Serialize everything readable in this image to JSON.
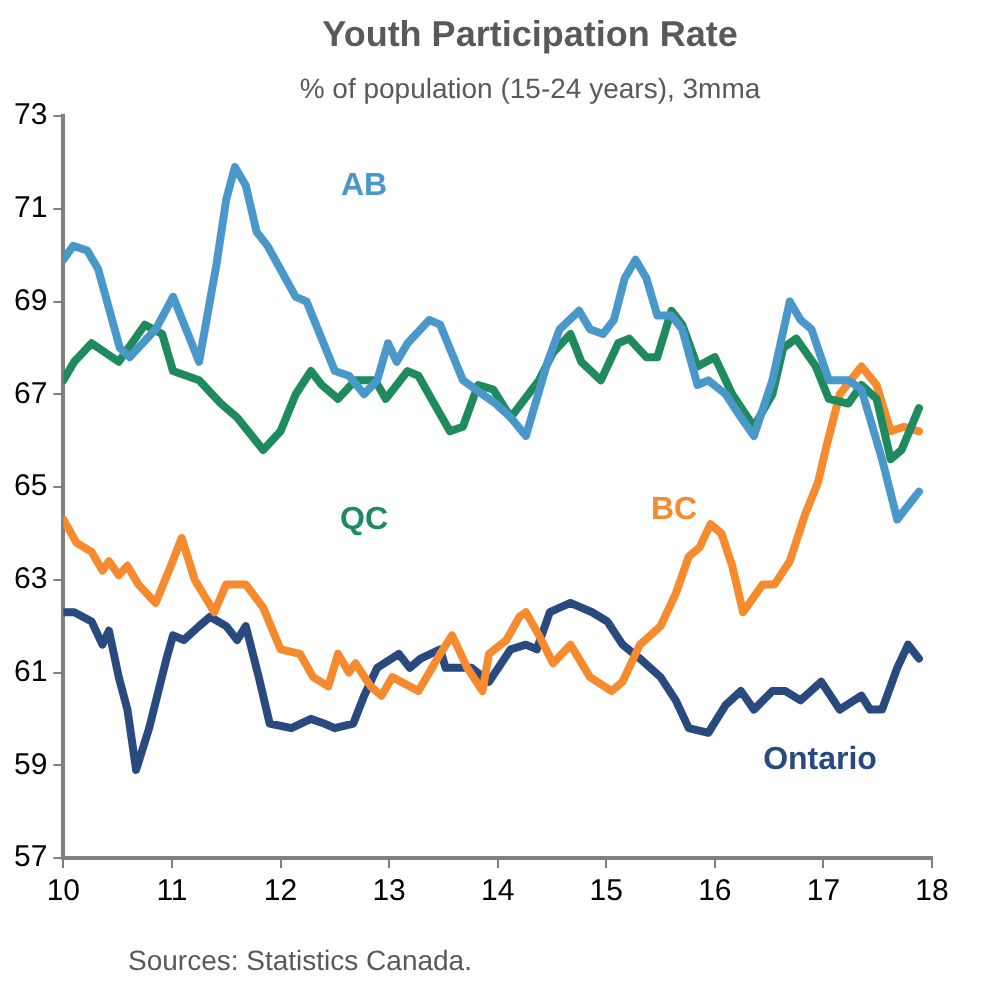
{
  "chart_data": {
    "type": "line",
    "title": "Youth Participation Rate",
    "subtitle": "% of population (15-24 years), 3mma",
    "annotations": [
      "Sources: Statistics Canada."
    ],
    "xlim": [
      10,
      18
    ],
    "xticks": [
      10,
      11,
      12,
      13,
      14,
      15,
      16,
      17,
      18
    ],
    "ylim": [
      57,
      73
    ],
    "yticks": [
      57,
      59,
      61,
      63,
      65,
      67,
      69,
      71,
      73
    ],
    "grid": false,
    "legend": false,
    "marker": "none",
    "line_style": "solid",
    "series": [
      {
        "name": "AB",
        "color": "#4a98c9",
        "x": [
          10.0,
          10.09,
          10.22,
          10.32,
          10.52,
          10.61,
          10.85,
          11.01,
          11.25,
          11.41,
          11.5,
          11.58,
          11.68,
          11.78,
          11.88,
          12.14,
          12.24,
          12.5,
          12.63,
          12.77,
          12.89,
          12.99,
          13.07,
          13.17,
          13.37,
          13.47,
          13.68,
          13.86,
          13.98,
          14.12,
          14.26,
          14.46,
          14.57,
          14.75,
          14.85,
          14.97,
          15.07,
          15.17,
          15.27,
          15.37,
          15.47,
          15.6,
          15.7,
          15.84,
          15.94,
          16.1,
          16.24,
          16.36,
          16.53,
          16.69,
          16.79,
          16.89,
          17.05,
          17.23,
          17.35,
          17.54,
          17.68,
          17.88
        ],
        "values": [
          69.9,
          70.2,
          70.1,
          69.7,
          68.0,
          67.8,
          68.4,
          69.1,
          67.7,
          69.8,
          71.2,
          71.9,
          71.5,
          70.5,
          70.2,
          69.1,
          69.0,
          67.5,
          67.4,
          67.0,
          67.3,
          68.1,
          67.7,
          68.1,
          68.6,
          68.5,
          67.3,
          67.0,
          66.8,
          66.5,
          66.1,
          67.7,
          68.4,
          68.8,
          68.4,
          68.3,
          68.6,
          69.5,
          69.9,
          69.5,
          68.7,
          68.7,
          68.4,
          67.2,
          67.3,
          67.0,
          66.5,
          66.1,
          67.3,
          69.0,
          68.6,
          68.4,
          67.3,
          67.3,
          67.1,
          65.6,
          64.3,
          64.9
        ]
      },
      {
        "name": "QC",
        "color": "#1e8a5e",
        "x": [
          10.0,
          10.1,
          10.26,
          10.51,
          10.75,
          10.91,
          11.01,
          11.25,
          11.45,
          11.6,
          11.84,
          12.0,
          12.14,
          12.28,
          12.38,
          12.53,
          12.69,
          12.87,
          12.97,
          13.17,
          13.27,
          13.39,
          13.56,
          13.68,
          13.82,
          13.96,
          14.12,
          14.38,
          14.51,
          14.67,
          14.77,
          14.95,
          15.11,
          15.21,
          15.37,
          15.47,
          15.6,
          15.7,
          15.84,
          16.0,
          16.16,
          16.36,
          16.53,
          16.63,
          16.75,
          16.93,
          17.05,
          17.23,
          17.35,
          17.49,
          17.62,
          17.72,
          17.88
        ],
        "values": [
          67.3,
          67.7,
          68.1,
          67.7,
          68.5,
          68.3,
          67.5,
          67.3,
          66.8,
          66.5,
          65.8,
          66.2,
          67.0,
          67.5,
          67.2,
          66.9,
          67.3,
          67.3,
          66.9,
          67.5,
          67.4,
          66.9,
          66.2,
          66.3,
          67.2,
          67.1,
          66.5,
          67.3,
          67.9,
          68.3,
          67.7,
          67.3,
          68.1,
          68.2,
          67.8,
          67.8,
          68.8,
          68.5,
          67.6,
          67.8,
          67.0,
          66.3,
          67.0,
          68.0,
          68.2,
          67.6,
          66.9,
          66.8,
          67.2,
          66.9,
          65.6,
          65.8,
          66.7
        ]
      },
      {
        "name": "BC",
        "color": "#f58a2e",
        "x": [
          10.0,
          10.12,
          10.26,
          10.36,
          10.42,
          10.51,
          10.59,
          10.69,
          10.85,
          10.99,
          11.09,
          11.21,
          11.39,
          11.5,
          11.68,
          11.84,
          12.0,
          12.18,
          12.3,
          12.44,
          12.53,
          12.63,
          12.69,
          12.83,
          12.93,
          13.03,
          13.27,
          13.47,
          13.58,
          13.72,
          13.86,
          13.92,
          14.08,
          14.2,
          14.26,
          14.38,
          14.51,
          14.67,
          14.85,
          15.05,
          15.15,
          15.31,
          15.5,
          15.64,
          15.76,
          15.86,
          15.96,
          16.06,
          16.16,
          16.26,
          16.44,
          16.55,
          16.69,
          16.83,
          16.95,
          17.03,
          17.15,
          17.35,
          17.49,
          17.62,
          17.74,
          17.88
        ],
        "values": [
          64.3,
          63.8,
          63.6,
          63.2,
          63.4,
          63.1,
          63.3,
          62.9,
          62.5,
          63.3,
          63.9,
          63.0,
          62.3,
          62.9,
          62.9,
          62.4,
          61.5,
          61.4,
          60.9,
          60.7,
          61.4,
          61.0,
          61.2,
          60.7,
          60.5,
          60.9,
          60.6,
          61.4,
          61.8,
          61.1,
          60.6,
          61.4,
          61.7,
          62.2,
          62.3,
          61.8,
          61.2,
          61.6,
          60.9,
          60.6,
          60.8,
          61.6,
          62.0,
          62.7,
          63.5,
          63.7,
          64.2,
          64.0,
          63.3,
          62.3,
          62.9,
          62.9,
          63.4,
          64.4,
          65.1,
          65.9,
          67.0,
          67.6,
          67.2,
          66.2,
          66.3,
          66.2
        ]
      },
      {
        "name": "Ontario",
        "color": "#284a7e",
        "x": [
          10.0,
          10.1,
          10.26,
          10.36,
          10.42,
          10.51,
          10.59,
          10.67,
          10.79,
          10.95,
          11.01,
          11.11,
          11.25,
          11.35,
          11.5,
          11.6,
          11.68,
          11.8,
          11.9,
          12.1,
          12.28,
          12.4,
          12.5,
          12.67,
          12.77,
          12.89,
          13.09,
          13.19,
          13.29,
          13.47,
          13.52,
          13.76,
          13.92,
          14.12,
          14.26,
          14.36,
          14.48,
          14.67,
          14.87,
          15.01,
          15.15,
          15.31,
          15.5,
          15.64,
          15.76,
          15.94,
          16.1,
          16.24,
          16.36,
          16.53,
          16.65,
          16.79,
          16.98,
          17.15,
          17.35,
          17.43,
          17.54,
          17.68,
          17.78,
          17.88
        ],
        "values": [
          62.3,
          62.3,
          62.1,
          61.6,
          61.9,
          60.9,
          60.2,
          58.9,
          59.8,
          61.3,
          61.8,
          61.7,
          62.0,
          62.2,
          62.0,
          61.7,
          62.0,
          60.9,
          59.9,
          59.8,
          60.0,
          59.9,
          59.8,
          59.9,
          60.5,
          61.1,
          61.4,
          61.1,
          61.3,
          61.5,
          61.1,
          61.1,
          60.8,
          61.5,
          61.6,
          61.5,
          62.3,
          62.5,
          62.3,
          62.1,
          61.6,
          61.3,
          60.9,
          60.4,
          59.8,
          59.7,
          60.3,
          60.6,
          60.2,
          60.6,
          60.6,
          60.4,
          60.8,
          60.2,
          60.5,
          60.2,
          60.2,
          61.1,
          61.6,
          61.3
        ]
      }
    ]
  }
}
